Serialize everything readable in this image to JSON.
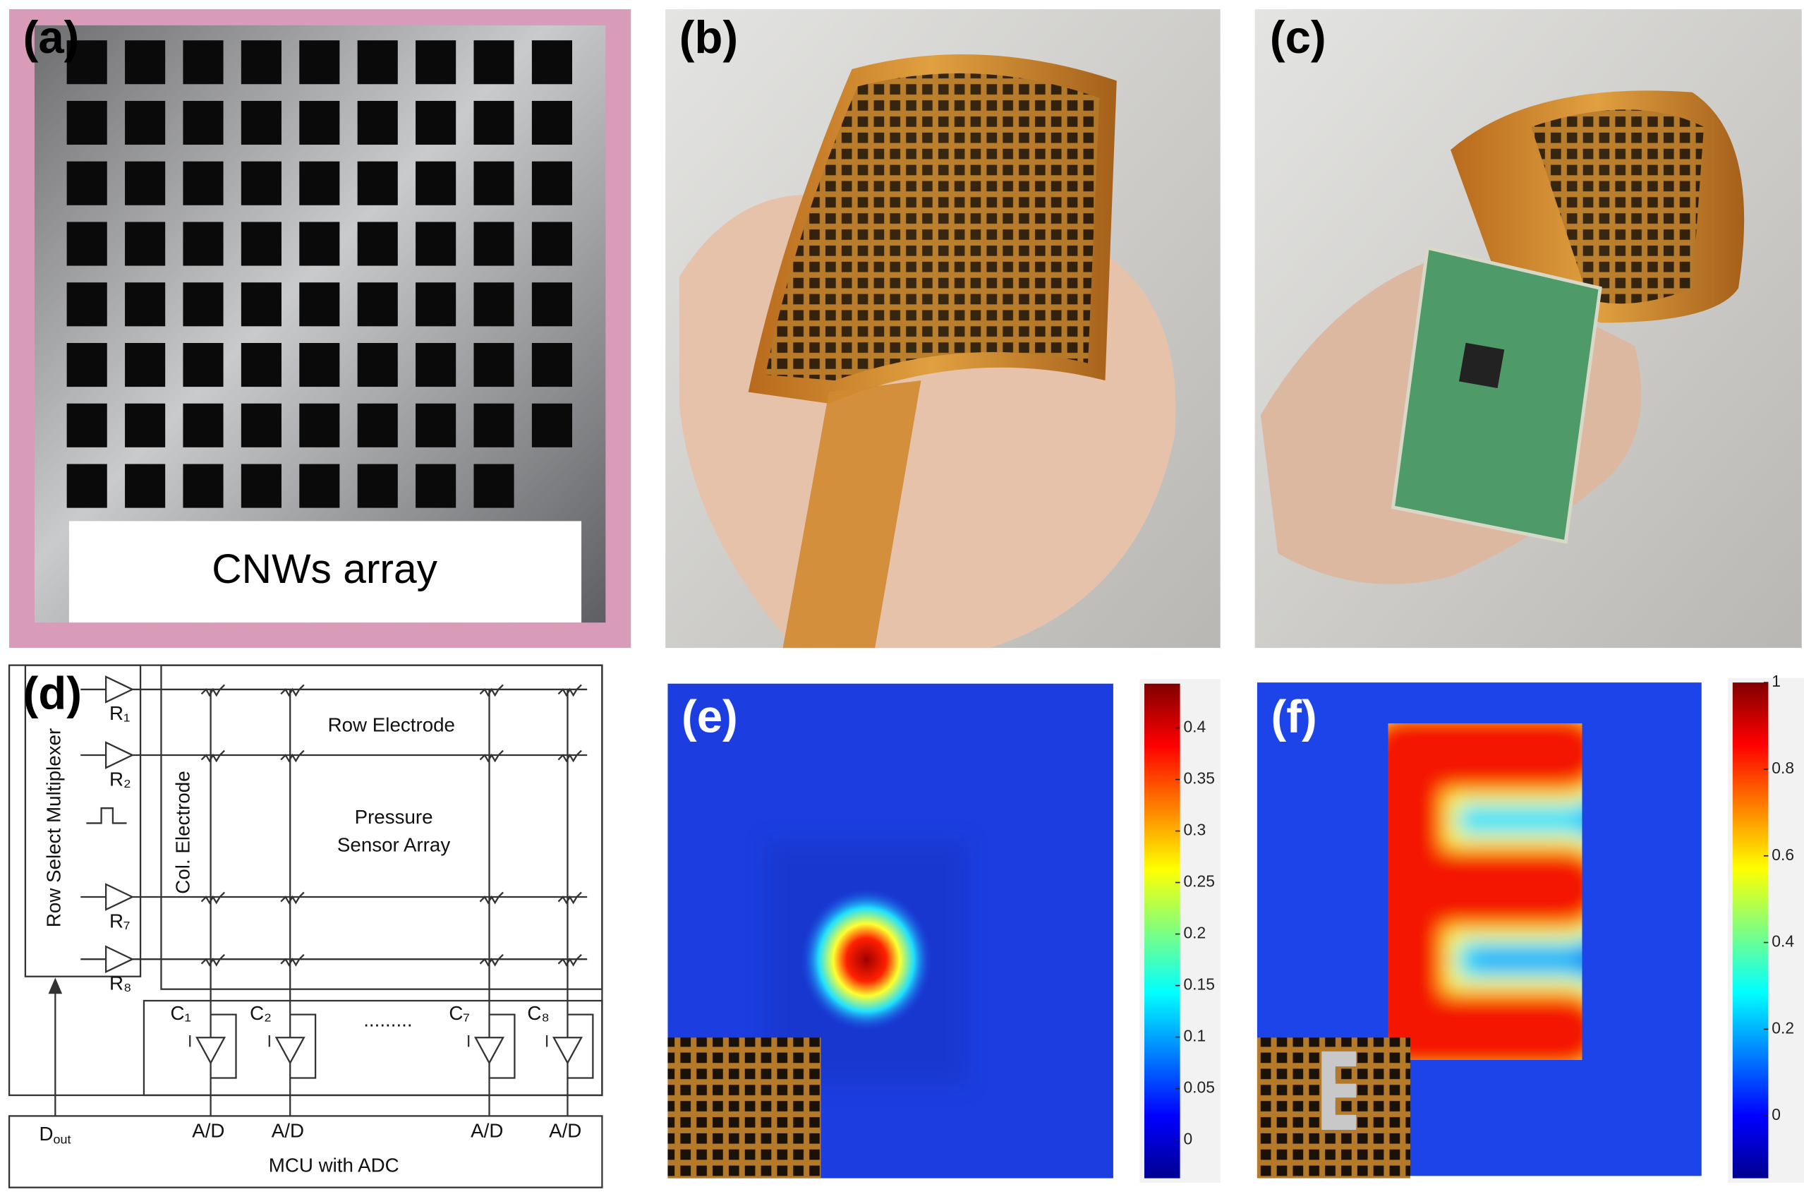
{
  "panels": {
    "a": {
      "label": "(a)",
      "caption": "CNWs array"
    },
    "b": {
      "label": "(b)"
    },
    "c": {
      "label": "(c)"
    },
    "d": {
      "label": "(d)",
      "multiplexer": "Row Select Multiplexer",
      "rows": [
        "R₁",
        "R₂",
        "R₇",
        "R₈"
      ],
      "columns": [
        "C₁",
        "C₂",
        "C₇",
        "C₈"
      ],
      "row_electrode": "Row Electrode",
      "col_electrode": "Col. Electrode",
      "sensor_array": [
        "Pressure",
        "Sensor Array"
      ],
      "ellipsis": ".........",
      "adc": [
        "A/D",
        "A/D",
        "A/D",
        "A/D"
      ],
      "dout": {
        "main": "D",
        "sub": "out"
      },
      "mcu": "MCU with ADC"
    },
    "e": {
      "label": "(e)",
      "colorbar": {
        "lim": [
          -0.037,
          0.443
        ],
        "ticks": [
          0,
          0.05,
          0.1,
          0.15,
          0.2,
          0.25,
          0.3,
          0.35,
          0.4
        ]
      }
    },
    "f": {
      "label": "(f)",
      "colorbar": {
        "lim": [
          -0.144,
          1
        ],
        "ticks": [
          0,
          0.2,
          0.4,
          0.6,
          0.8,
          1
        ]
      }
    }
  }
}
